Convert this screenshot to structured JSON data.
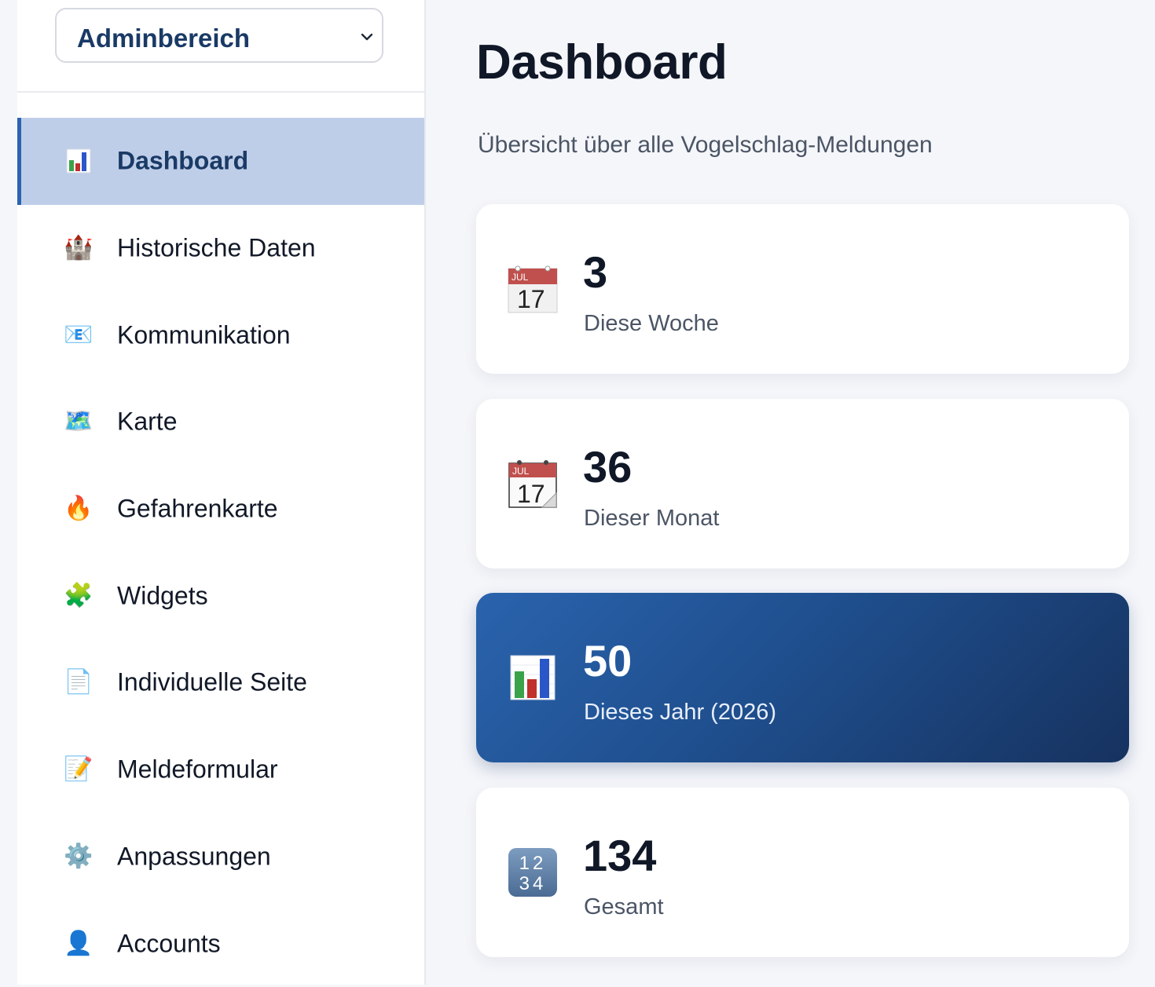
{
  "sidebar": {
    "area_select": {
      "label": "Adminbereich"
    },
    "items": [
      {
        "label": "Dashboard",
        "icon": "bar-chart-icon",
        "emoji": "📊",
        "active": true
      },
      {
        "label": "Historische Daten",
        "icon": "castle-icon",
        "emoji": "🏰"
      },
      {
        "label": "Kommunikation",
        "icon": "email-icon",
        "emoji": "📧"
      },
      {
        "label": "Karte",
        "icon": "map-icon",
        "emoji": "🗺️"
      },
      {
        "label": "Gefahrenkarte",
        "icon": "fire-icon",
        "emoji": "🔥"
      },
      {
        "label": "Widgets",
        "icon": "puzzle-icon",
        "emoji": "🧩"
      },
      {
        "label": "Individuelle Seite",
        "icon": "page-icon",
        "emoji": "📄"
      },
      {
        "label": "Meldeformular",
        "icon": "memo-icon",
        "emoji": "📝"
      },
      {
        "label": "Anpassungen",
        "icon": "gear-icon",
        "emoji": "⚙️"
      },
      {
        "label": "Accounts",
        "icon": "user-icon",
        "emoji": "👤"
      }
    ]
  },
  "main": {
    "title": "Dashboard",
    "subtitle": "Übersicht über alle Vogelschlag-Meldungen",
    "cards": [
      {
        "value": "3",
        "caption": "Diese Woche",
        "icon": "calendar-icon",
        "calendar_month": "JUL",
        "calendar_day": "17"
      },
      {
        "value": "36",
        "caption": "Dieser Monat",
        "icon": "tear-off-calendar-icon",
        "calendar_month": "JUL",
        "calendar_day": "17"
      },
      {
        "value": "50",
        "caption": "Dieses Jahr (2026)",
        "icon": "bar-chart-icon",
        "highlight": true
      },
      {
        "value": "134",
        "caption": "Gesamt",
        "icon": "numbers-icon",
        "numbers_top": "12",
        "numbers_bottom": "34"
      }
    ]
  },
  "colors": {
    "accent": "#2b63b0",
    "active_bg": "#bfcee8",
    "highlight_card_start": "#2a63ad",
    "highlight_card_end": "#16325f"
  }
}
